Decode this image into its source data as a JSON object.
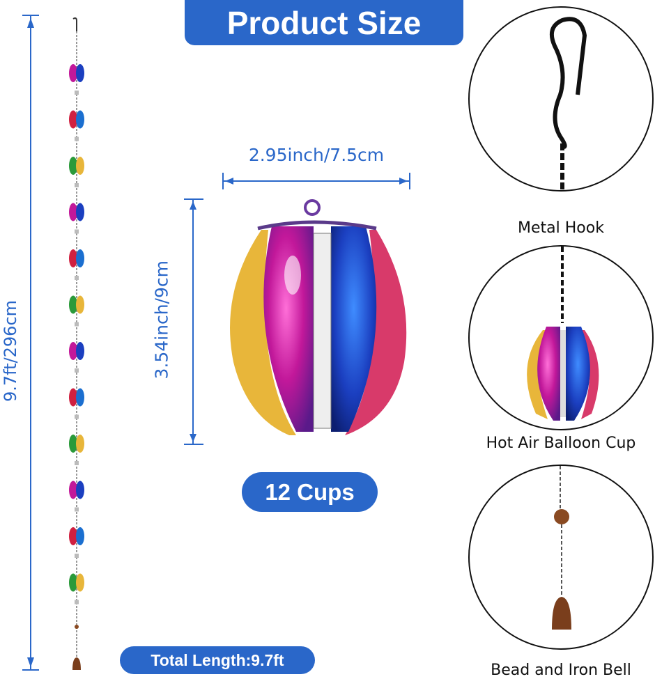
{
  "header": {
    "title": "Product Size"
  },
  "dimensions": {
    "total_length": "9.7ft/296cm",
    "cup_width": "2.95inch/7.5cm",
    "cup_height": "3.54inch/9cm"
  },
  "badges": {
    "cups": "12 Cups",
    "total_length": "Total Length:9.7ft"
  },
  "details": [
    {
      "label": "Metal Hook"
    },
    {
      "label": "Hot Air Balloon Cup"
    },
    {
      "label": "Bead and Iron Bell"
    }
  ],
  "colors": {
    "accent": "#2a67c9",
    "dimension_line": "#2a67c9"
  }
}
